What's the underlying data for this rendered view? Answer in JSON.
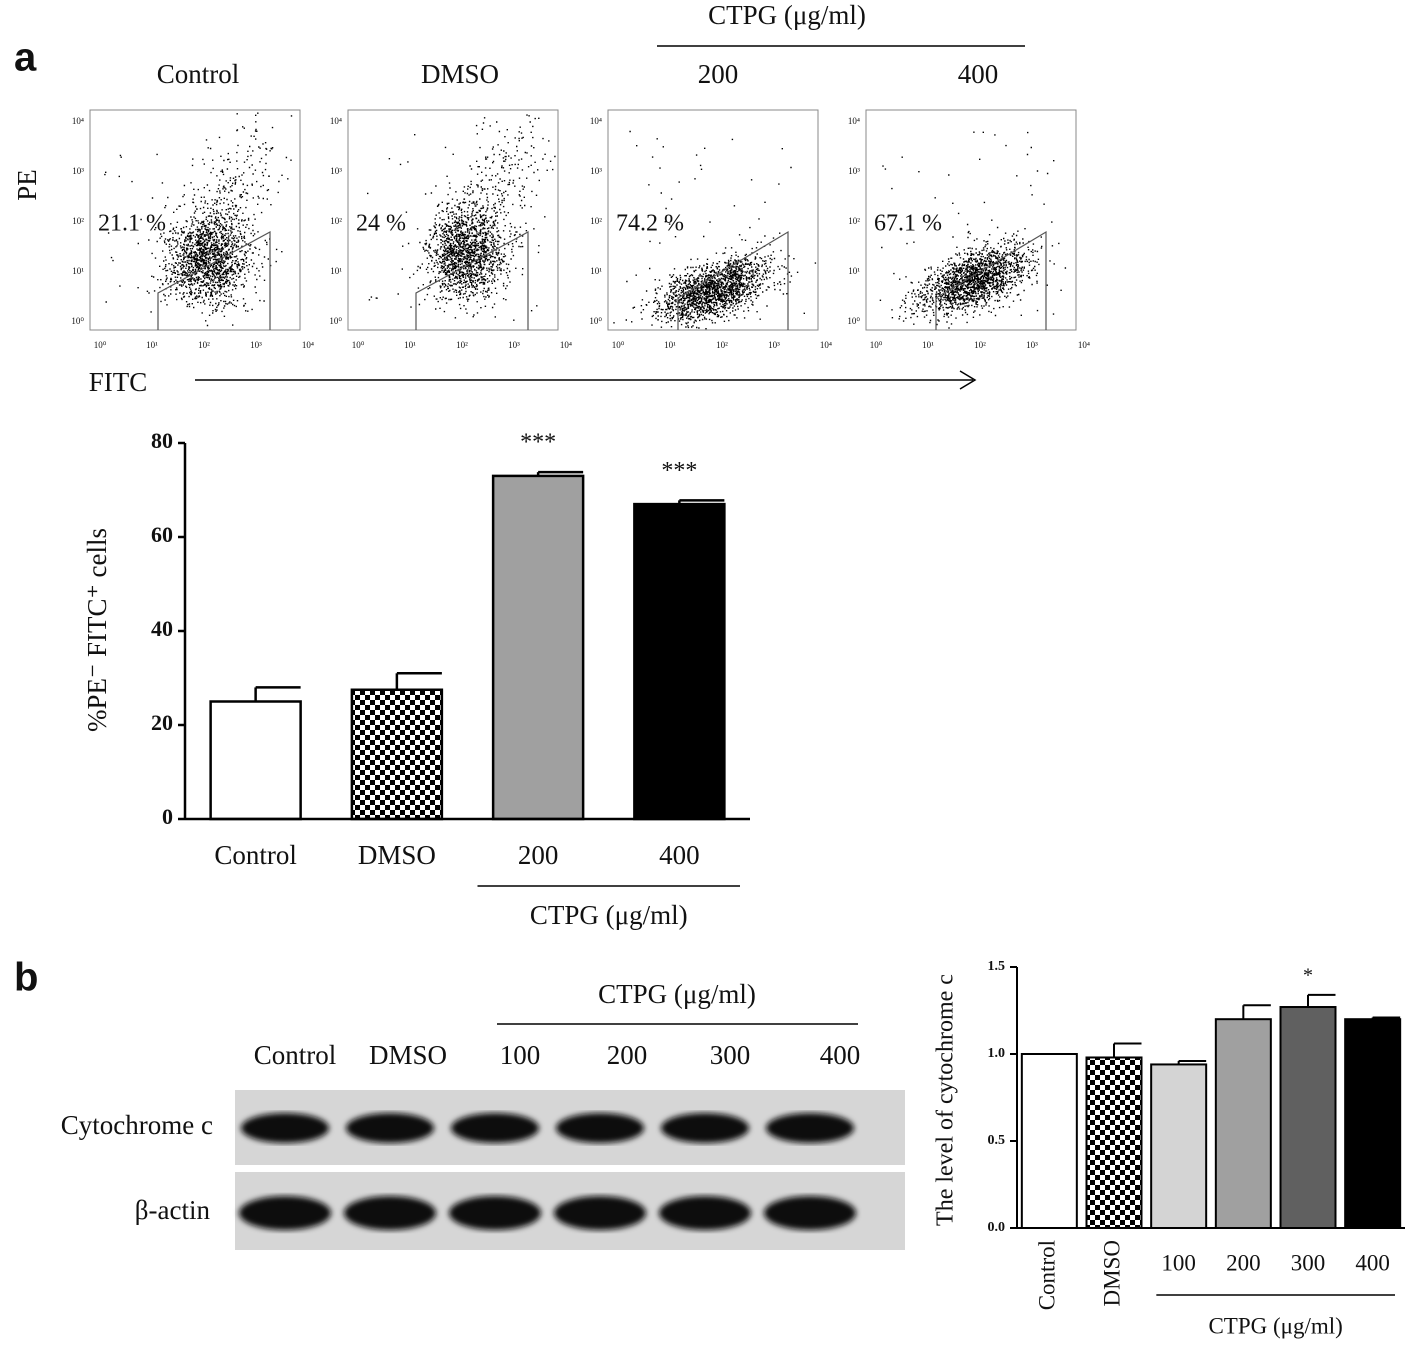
{
  "panel_labels": [
    "a",
    "b"
  ],
  "flow": {
    "header": "CTPG (μg/ml)",
    "y_label": "PE",
    "x_label": "FITC",
    "decade_labels": [
      "10⁰",
      "10¹",
      "10²",
      "10³",
      "10⁴"
    ],
    "samples": [
      {
        "label": "Control",
        "percent": "21.1 %"
      },
      {
        "label": "DMSO",
        "percent": "24 %"
      },
      {
        "label": "200",
        "percent": "74.2 %"
      },
      {
        "label": "400",
        "percent": "67.1 %"
      }
    ]
  },
  "blot": {
    "header": "CTPG (μg/ml)",
    "lanes": [
      "Control",
      "DMSO",
      "100",
      "200",
      "300",
      "400"
    ],
    "rows": [
      "Cytochrome c",
      "β-actin"
    ]
  },
  "chart_data": [
    {
      "type": "bar",
      "y_label": "%PE⁻ FITC⁺ cells",
      "categories": [
        "Control",
        "DMSO",
        "200",
        "400"
      ],
      "values": [
        25,
        27.5,
        73,
        67
      ],
      "errors": [
        3,
        3.5,
        0.8,
        0.8
      ],
      "colors": [
        "#ffffff",
        "#ffffff",
        "#a0a0a0",
        "#000000"
      ],
      "patterns": [
        null,
        "checkerboard",
        null,
        null
      ],
      "significance": [
        null,
        null,
        "***",
        "***"
      ],
      "group_label": "CTPG (μg/ml)",
      "ylim": [
        0,
        80
      ],
      "yticks": [
        0,
        20,
        40,
        60,
        80
      ]
    },
    {
      "type": "bar",
      "y_label": "The level of cytochrome c",
      "categories": [
        "Control",
        "DMSO",
        "100",
        "200",
        "300",
        "400"
      ],
      "values": [
        1.0,
        0.98,
        0.94,
        1.2,
        1.27,
        1.2
      ],
      "errors": [
        0,
        0.08,
        0.02,
        0.08,
        0.07,
        0.01
      ],
      "colors": [
        "#ffffff",
        "#ffffff",
        "#d4d4d4",
        "#a0a0a0",
        "#606060",
        "#000000"
      ],
      "patterns": [
        null,
        "checkerboard",
        null,
        null,
        null,
        null
      ],
      "significance": [
        null,
        null,
        null,
        null,
        "*",
        null
      ],
      "group_label": "CTPG (μg/ml)",
      "ylim": [
        0,
        1.5
      ],
      "yticks": [
        {
          "value": 0,
          "label": "0.0"
        },
        0.5,
        {
          "value": 1,
          "label": "1.0"
        },
        1.5
      ]
    }
  ]
}
